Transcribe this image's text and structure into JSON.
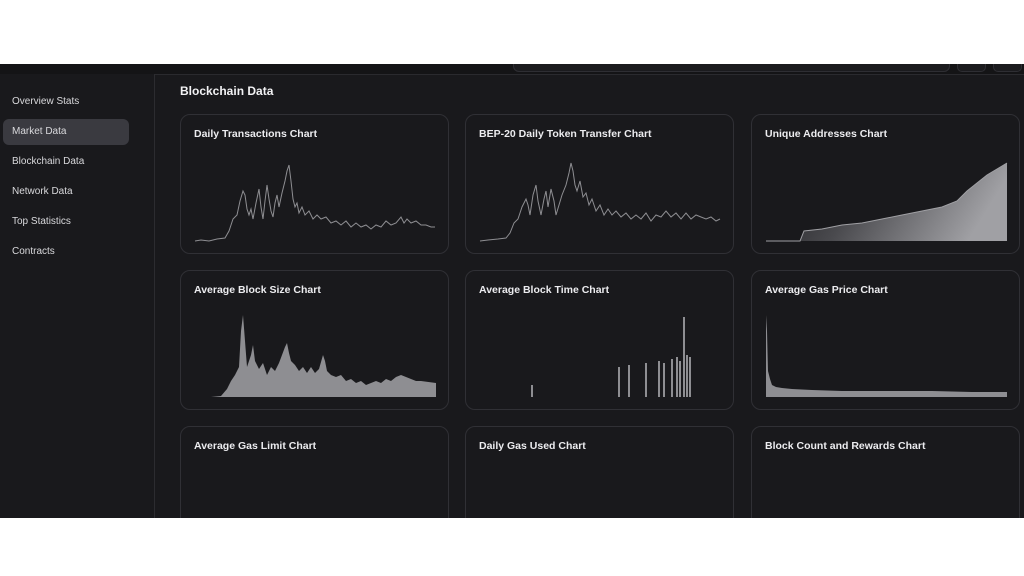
{
  "colors": {
    "background": "#19191c",
    "card_border": "#303035",
    "sidebar_active": "#3a3a40",
    "chart_fill": "#8e8e92"
  },
  "sidebar": {
    "items": [
      {
        "label": "Overview Stats",
        "active": false
      },
      {
        "label": "Market Data",
        "active": true
      },
      {
        "label": "Blockchain Data",
        "active": false
      },
      {
        "label": "Network Data",
        "active": false
      },
      {
        "label": "Top Statistics",
        "active": false
      },
      {
        "label": "Contracts",
        "active": false
      }
    ]
  },
  "main": {
    "section_title": "Blockchain Data",
    "cards": [
      {
        "title": "Daily Transactions Chart",
        "chart_kind": "line"
      },
      {
        "title": "BEP-20 Daily Token Transfer Chart",
        "chart_kind": "line"
      },
      {
        "title": "Unique Addresses Chart",
        "chart_kind": "area-gradient"
      },
      {
        "title": "Average Block Size Chart",
        "chart_kind": "area"
      },
      {
        "title": "Average Block Time Chart",
        "chart_kind": "bars"
      },
      {
        "title": "Average Gas Price Chart",
        "chart_kind": "area"
      },
      {
        "title": "Average Gas Limit Chart",
        "chart_kind": "step-area"
      },
      {
        "title": "Daily Gas Used Chart",
        "chart_kind": "area"
      },
      {
        "title": "Block Count and Rewards Chart",
        "chart_kind": "block-area"
      }
    ]
  }
}
